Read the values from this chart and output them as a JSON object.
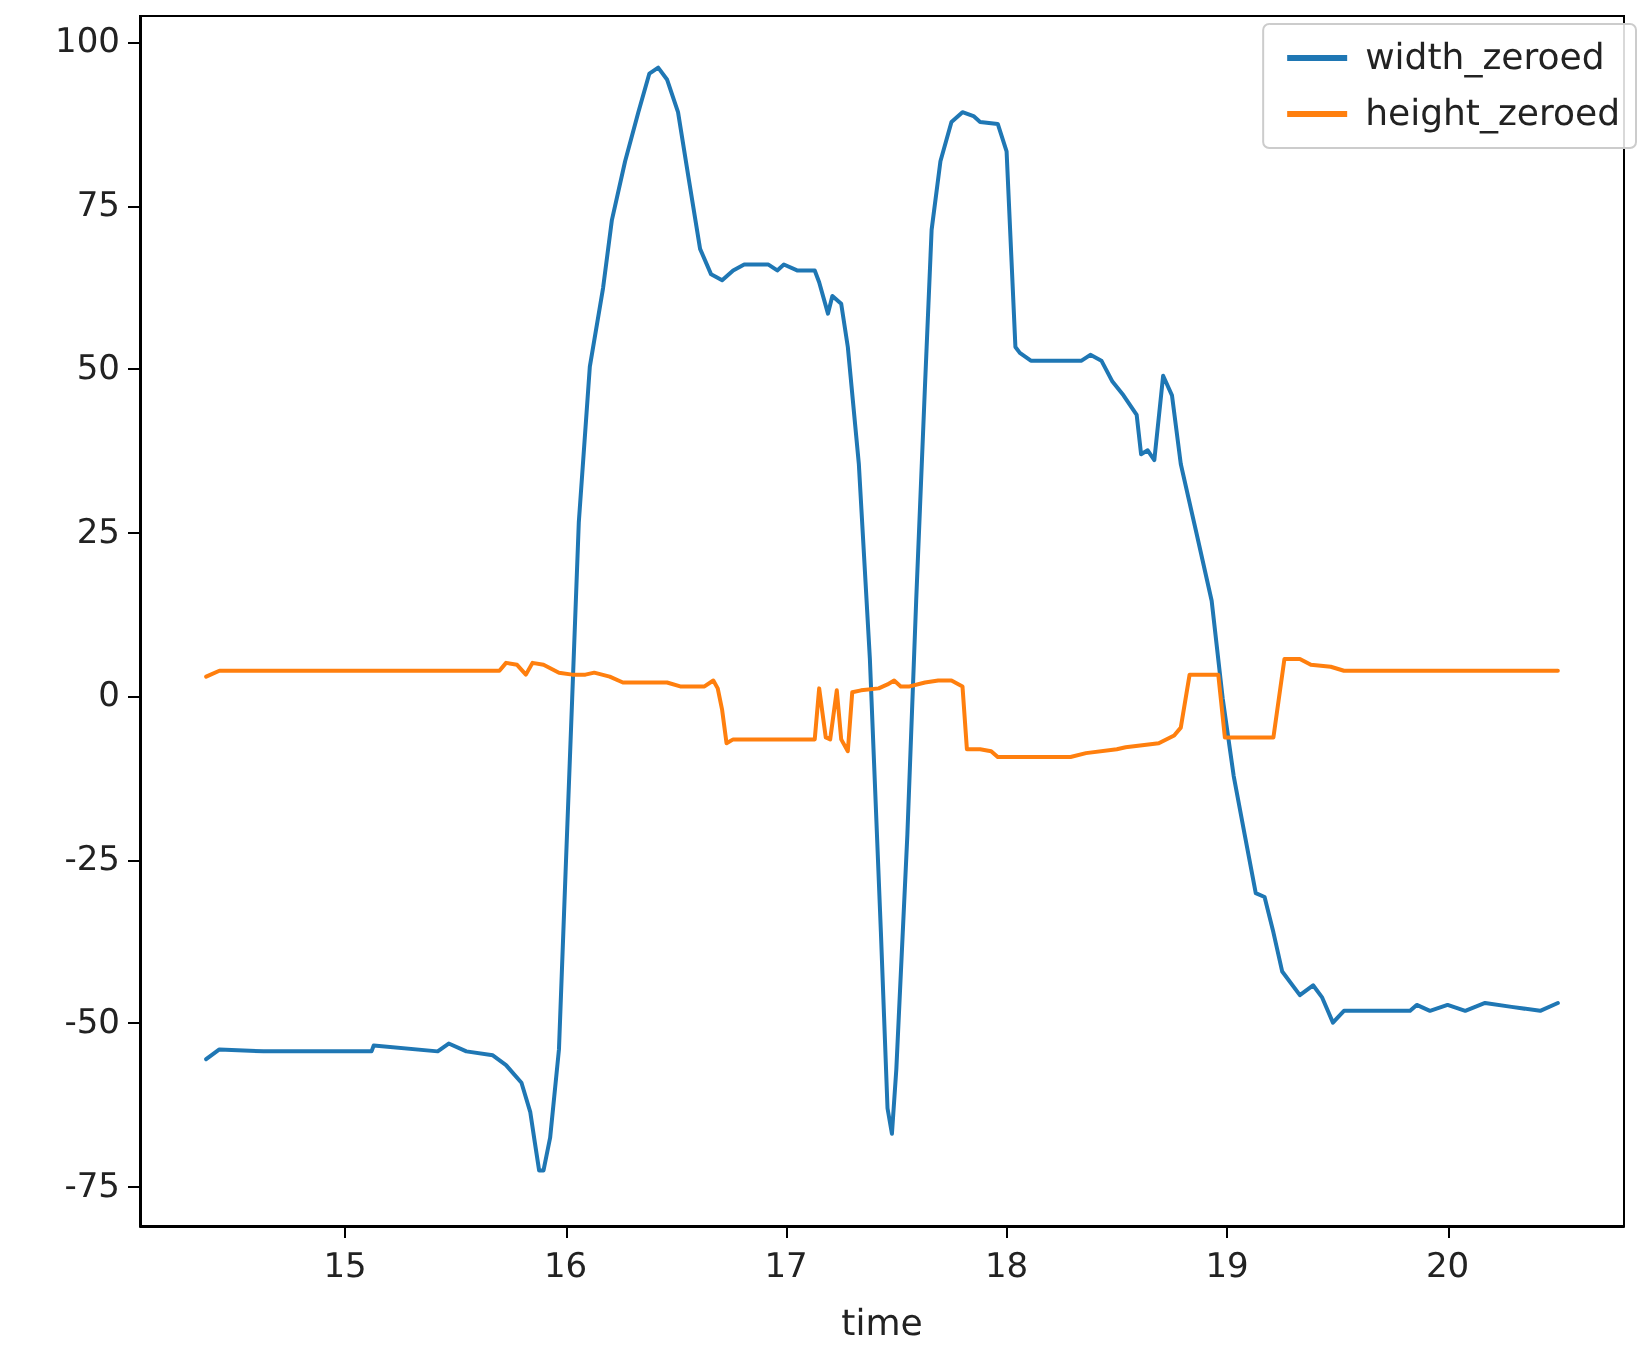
{
  "chart_data": {
    "type": "line",
    "xlabel": "time",
    "xlim": [
      14.07,
      20.8
    ],
    "xticks": [
      15,
      16,
      17,
      18,
      19,
      20
    ],
    "ylim": [
      -81,
      104
    ],
    "yticks": [
      -75,
      -50,
      -25,
      0,
      25,
      50,
      75,
      100
    ],
    "grid": false,
    "legend": "top right",
    "marker": "none",
    "line_style": "solid",
    "series": [
      {
        "name": "width_zeroed",
        "color": "#1f77b4",
        "x": [
          14.37,
          14.43,
          14.63,
          15.12,
          15.13,
          15.42,
          15.47,
          15.55,
          15.67,
          15.73,
          15.8,
          15.84,
          15.86,
          15.88,
          15.9,
          15.93,
          15.97,
          16.0,
          16.03,
          16.06,
          16.11,
          16.17,
          16.21,
          16.27,
          16.33,
          16.38,
          16.42,
          16.46,
          16.51,
          16.56,
          16.61,
          16.66,
          16.71,
          16.76,
          16.81,
          16.92,
          16.96,
          16.99,
          17.05,
          17.13,
          17.15,
          17.19,
          17.21,
          17.25,
          17.28,
          17.33,
          17.38,
          17.43,
          17.46,
          17.48,
          17.5,
          17.55,
          17.59,
          17.63,
          17.66,
          17.7,
          17.75,
          17.8,
          17.85,
          17.88,
          17.96,
          18.0,
          18.04,
          18.06,
          18.11,
          18.21,
          18.34,
          18.38,
          18.43,
          18.48,
          18.53,
          18.59,
          18.61,
          18.64,
          18.67,
          18.71,
          18.75,
          18.79,
          18.86,
          18.93,
          18.98,
          19.03,
          19.08,
          19.13,
          19.17,
          19.21,
          19.25,
          19.33,
          19.39,
          19.43,
          19.48,
          19.53,
          19.58,
          19.83,
          19.86,
          19.92,
          20.0,
          20.08,
          20.17,
          20.29,
          20.42,
          20.5
        ],
        "values": [
          -55.5,
          -54.0,
          -54.3,
          -54.3,
          -53.4,
          -54.3,
          -53.1,
          -54.3,
          -54.9,
          -56.4,
          -59.1,
          -63.6,
          -68.1,
          -72.5,
          -72.5,
          -67.5,
          -54.0,
          -26.9,
          -0.3,
          26.6,
          50.4,
          62.4,
          72.8,
          81.8,
          89.3,
          95.2,
          96.1,
          94.3,
          89.3,
          78.8,
          68.4,
          64.5,
          63.6,
          65.1,
          66.0,
          66.0,
          65.1,
          66.0,
          65.1,
          65.1,
          63.3,
          58.5,
          61.2,
          60.0,
          53.4,
          35.5,
          5.7,
          -36.1,
          -63.0,
          -66.9,
          -57.0,
          -21.2,
          14.6,
          47.5,
          71.3,
          81.8,
          87.8,
          89.3,
          88.7,
          87.8,
          87.5,
          83.3,
          53.4,
          52.5,
          51.3,
          51.3,
          51.3,
          52.2,
          51.3,
          48.1,
          46.0,
          43.0,
          37.0,
          37.6,
          36.1,
          49.0,
          46.0,
          35.5,
          25.1,
          14.6,
          -0.3,
          -12.2,
          -21.2,
          -30.1,
          -30.7,
          -36.1,
          -42.1,
          -45.7,
          -44.2,
          -46.0,
          -49.9,
          -48.1,
          -48.1,
          -48.1,
          -47.2,
          -48.1,
          -47.2,
          -48.1,
          -46.9,
          -47.5,
          -48.1,
          -46.9
        ]
      },
      {
        "name": "height_zeroed",
        "color": "#ff7f0e",
        "x": [
          14.37,
          14.43,
          15.7,
          15.73,
          15.78,
          15.82,
          15.85,
          15.9,
          15.97,
          16.03,
          16.09,
          16.13,
          16.2,
          16.26,
          16.46,
          16.52,
          16.63,
          16.67,
          16.69,
          16.71,
          16.73,
          16.76,
          17.09,
          17.13,
          17.15,
          17.18,
          17.2,
          17.23,
          17.25,
          17.28,
          17.3,
          17.34,
          17.42,
          17.46,
          17.49,
          17.52,
          17.56,
          17.63,
          17.69,
          17.75,
          17.8,
          17.82,
          17.88,
          17.93,
          17.96,
          18.29,
          18.36,
          18.5,
          18.54,
          18.69,
          18.76,
          18.79,
          18.83,
          18.92,
          18.96,
          18.99,
          19.21,
          19.26,
          19.33,
          19.38,
          19.47,
          19.53,
          20.5
        ],
        "values": [
          3.0,
          3.9,
          3.9,
          5.1,
          4.8,
          3.3,
          5.1,
          4.8,
          3.6,
          3.3,
          3.3,
          3.6,
          3.0,
          2.1,
          2.1,
          1.5,
          1.5,
          2.4,
          1.2,
          -2.1,
          -7.2,
          -6.6,
          -6.6,
          -6.6,
          1.2,
          -6.3,
          -6.6,
          0.9,
          -6.6,
          -8.4,
          0.6,
          0.9,
          1.2,
          1.8,
          2.4,
          1.5,
          1.5,
          2.1,
          2.4,
          2.4,
          1.5,
          -8.1,
          -8.1,
          -8.4,
          -9.3,
          -9.3,
          -8.7,
          -8.1,
          -7.8,
          -7.2,
          -6.0,
          -4.8,
          3.3,
          3.3,
          3.3,
          -6.3,
          -6.3,
          5.7,
          5.7,
          4.8,
          4.5,
          3.9,
          3.9
        ]
      }
    ]
  }
}
